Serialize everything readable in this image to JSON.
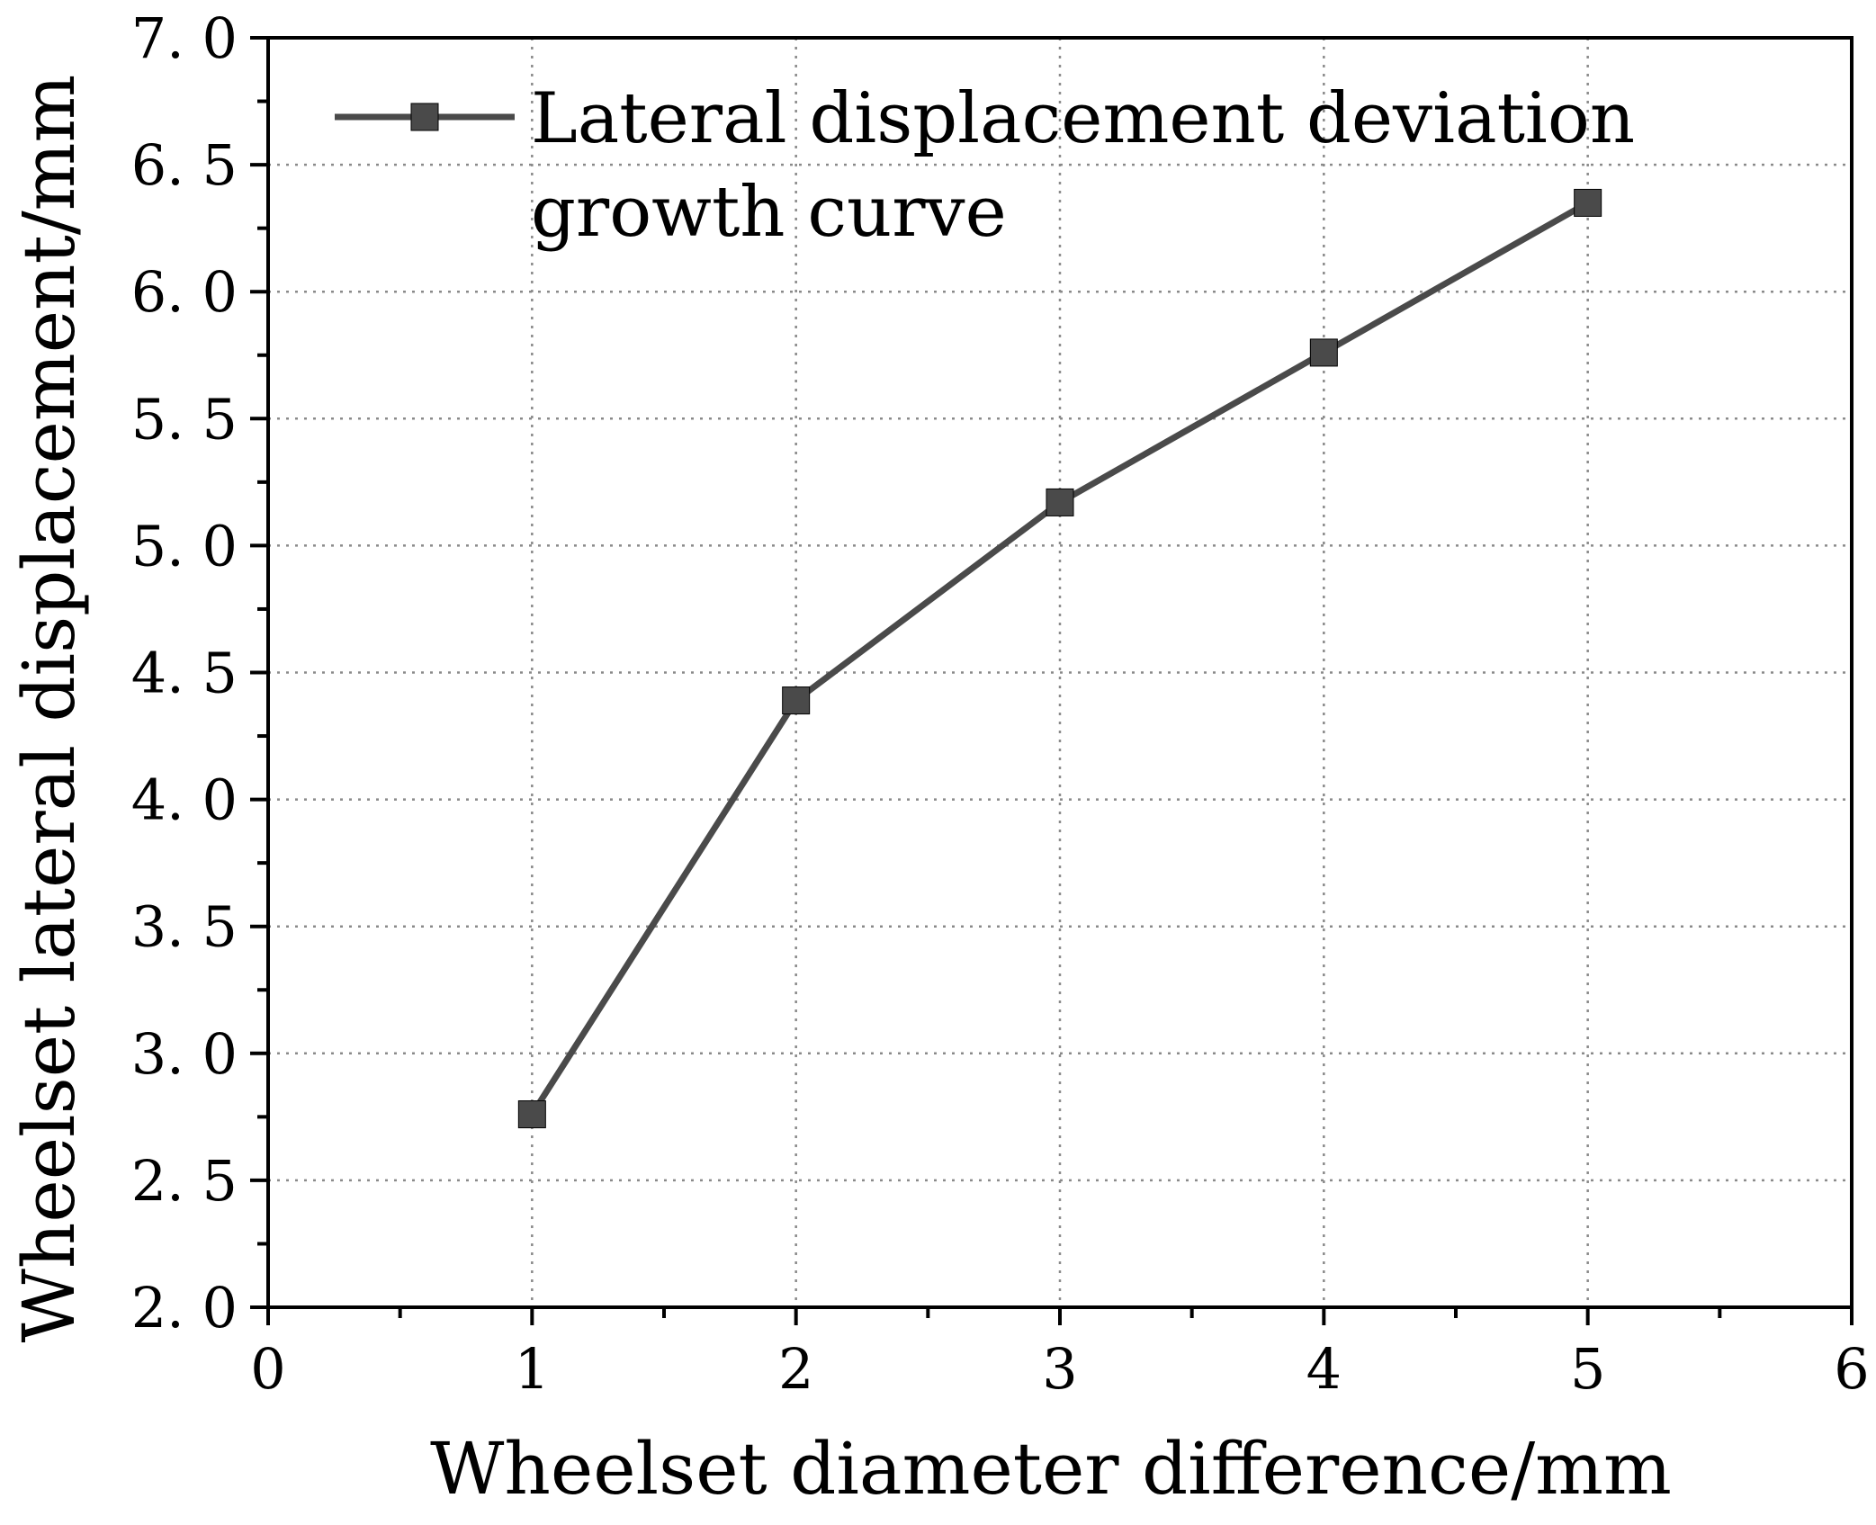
{
  "chart_data": {
    "type": "line",
    "title": "",
    "xlabel": "Wheelset diameter difference/mm",
    "ylabel": "Wheelset lateral displacement/mm",
    "xlim": [
      0,
      6
    ],
    "ylim": [
      2.0,
      7.0
    ],
    "x_ticks": [
      0,
      1,
      2,
      3,
      4,
      5,
      6
    ],
    "x_tick_labels": [
      "0",
      "1",
      "2",
      "3",
      "4",
      "5",
      "6"
    ],
    "y_ticks": [
      2.0,
      2.5,
      3.0,
      3.5,
      4.0,
      4.5,
      5.0,
      5.5,
      6.0,
      6.5,
      7.0
    ],
    "y_tick_labels": [
      "2. 0",
      "2. 5",
      "3. 0",
      "3. 5",
      "4. 0",
      "4. 5",
      "5. 0",
      "5. 5",
      "6. 0",
      "6. 5",
      "7. 0"
    ],
    "grid": true,
    "legend_position": "top-left",
    "series": [
      {
        "name": "Lateral displacement deviation growth curve",
        "legend_lines": [
          "Lateral displacement deviation",
          "growth curve"
        ],
        "marker": "square",
        "color": "#4a4a4a",
        "x": [
          1,
          2,
          3,
          4,
          5
        ],
        "y": [
          2.76,
          4.39,
          5.17,
          5.76,
          6.35
        ]
      }
    ]
  }
}
